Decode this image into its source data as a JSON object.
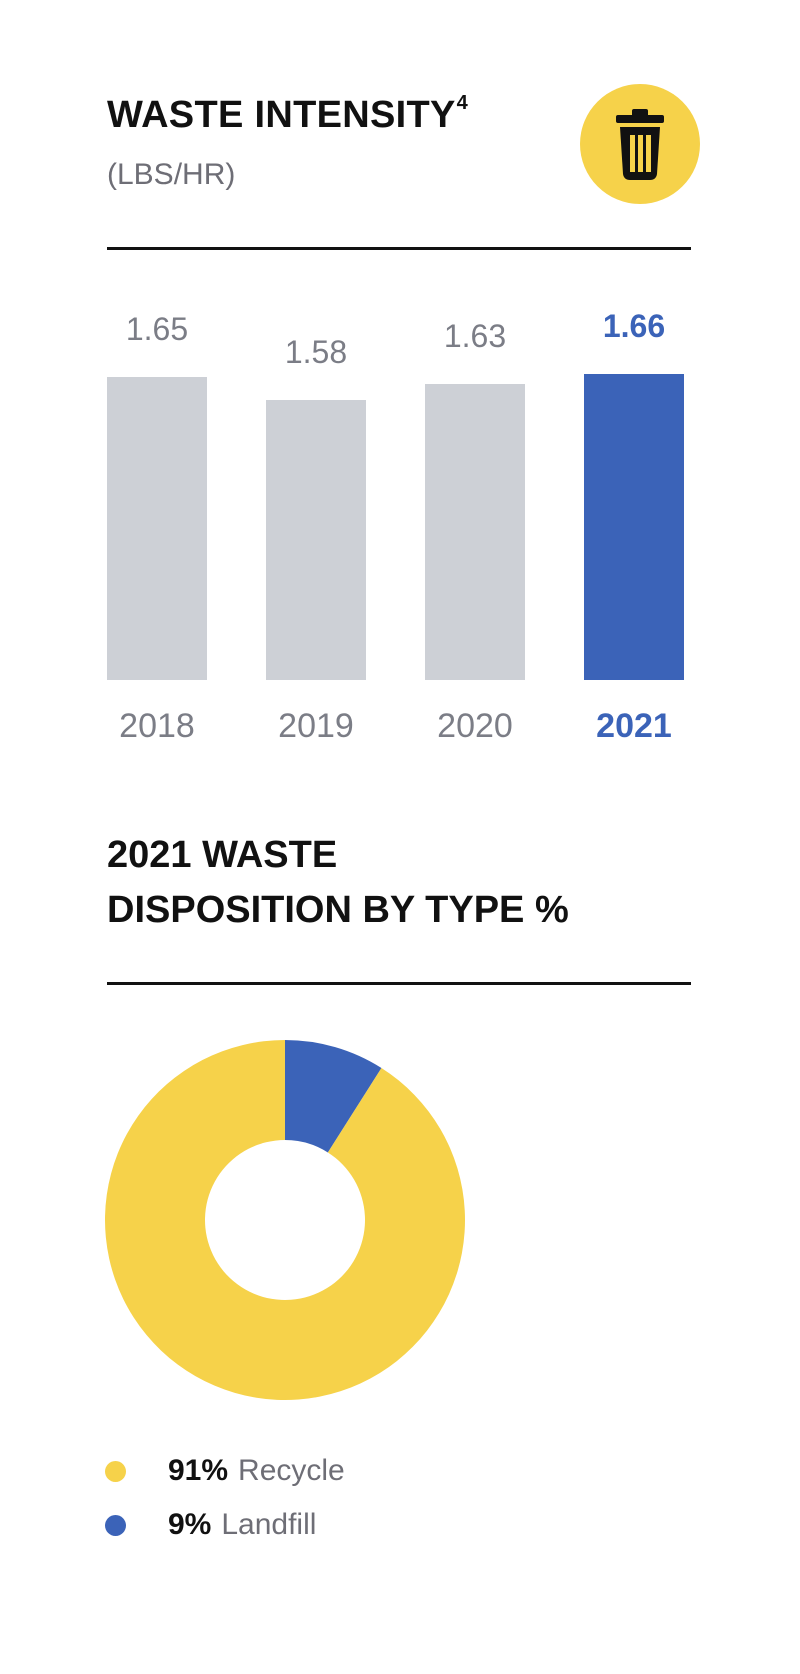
{
  "header": {
    "title": "WASTE INTENSITY",
    "footnote": "4",
    "subtitle": "(LBS/HR)",
    "icon": "trash-can-icon"
  },
  "colors": {
    "highlight": "#3b63b8",
    "bar_default": "#cdd0d6",
    "accent_yellow": "#f6d24a"
  },
  "section2": {
    "title_line1": "2021 WASTE",
    "title_line2": "DISPOSITION BY TYPE %"
  },
  "chart_data": [
    {
      "type": "bar",
      "title": "WASTE INTENSITY",
      "subtitle": "(LBS/HR)",
      "categories": [
        "2018",
        "2019",
        "2020",
        "2021"
      ],
      "values": [
        1.65,
        1.58,
        1.63,
        1.66
      ],
      "value_labels": [
        "1.65",
        "1.58",
        "1.63",
        "1.66"
      ],
      "highlight_category": "2021"
    },
    {
      "type": "pie",
      "title": "2021 WASTE DISPOSITION BY TYPE %",
      "donut": true,
      "slices": [
        {
          "label": "Recycle",
          "value": 91,
          "display": "91%",
          "color": "#f6d24a"
        },
        {
          "label": "Landfill",
          "value": 9,
          "display": "9%",
          "color": "#3b63b8"
        }
      ]
    }
  ]
}
